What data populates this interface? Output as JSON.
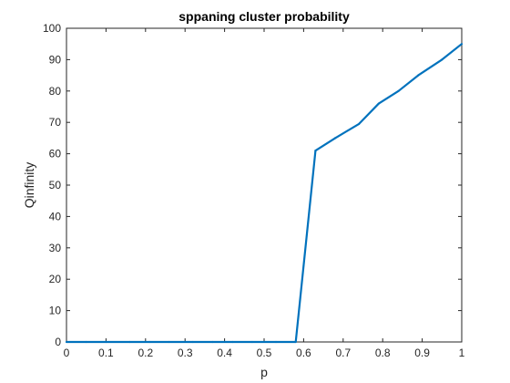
{
  "chart_data": {
    "type": "line",
    "title": "sppaning cluster probability",
    "xlabel": "p",
    "ylabel": "Qinfinity",
    "xlim": [
      0,
      1
    ],
    "ylim": [
      0,
      100
    ],
    "xticks": [
      0,
      0.1,
      0.2,
      0.3,
      0.4,
      0.5,
      0.6,
      0.7,
      0.8,
      0.9,
      1
    ],
    "xtick_labels": [
      "0",
      "0.1",
      "0.2",
      "0.3",
      "0.4",
      "0.5",
      "0.6",
      "0.7",
      "0.8",
      "0.9",
      "1"
    ],
    "yticks": [
      0,
      10,
      20,
      30,
      40,
      50,
      60,
      70,
      80,
      90,
      100
    ],
    "ytick_labels": [
      "0",
      "10",
      "20",
      "30",
      "40",
      "50",
      "60",
      "70",
      "80",
      "90",
      "100"
    ],
    "grid": false,
    "series": [
      {
        "color": "#0072BD",
        "x": [
          0,
          0.05,
          0.1,
          0.16,
          0.21,
          0.26,
          0.32,
          0.37,
          0.42,
          0.47,
          0.53,
          0.58,
          0.63,
          0.68,
          0.74,
          0.79,
          0.84,
          0.89,
          0.95,
          1.0
        ],
        "y": [
          0,
          0,
          0,
          0,
          0,
          0,
          0,
          0,
          0,
          0,
          0,
          0,
          61,
          65,
          69.5,
          76,
          80,
          85,
          90,
          95
        ]
      }
    ]
  }
}
